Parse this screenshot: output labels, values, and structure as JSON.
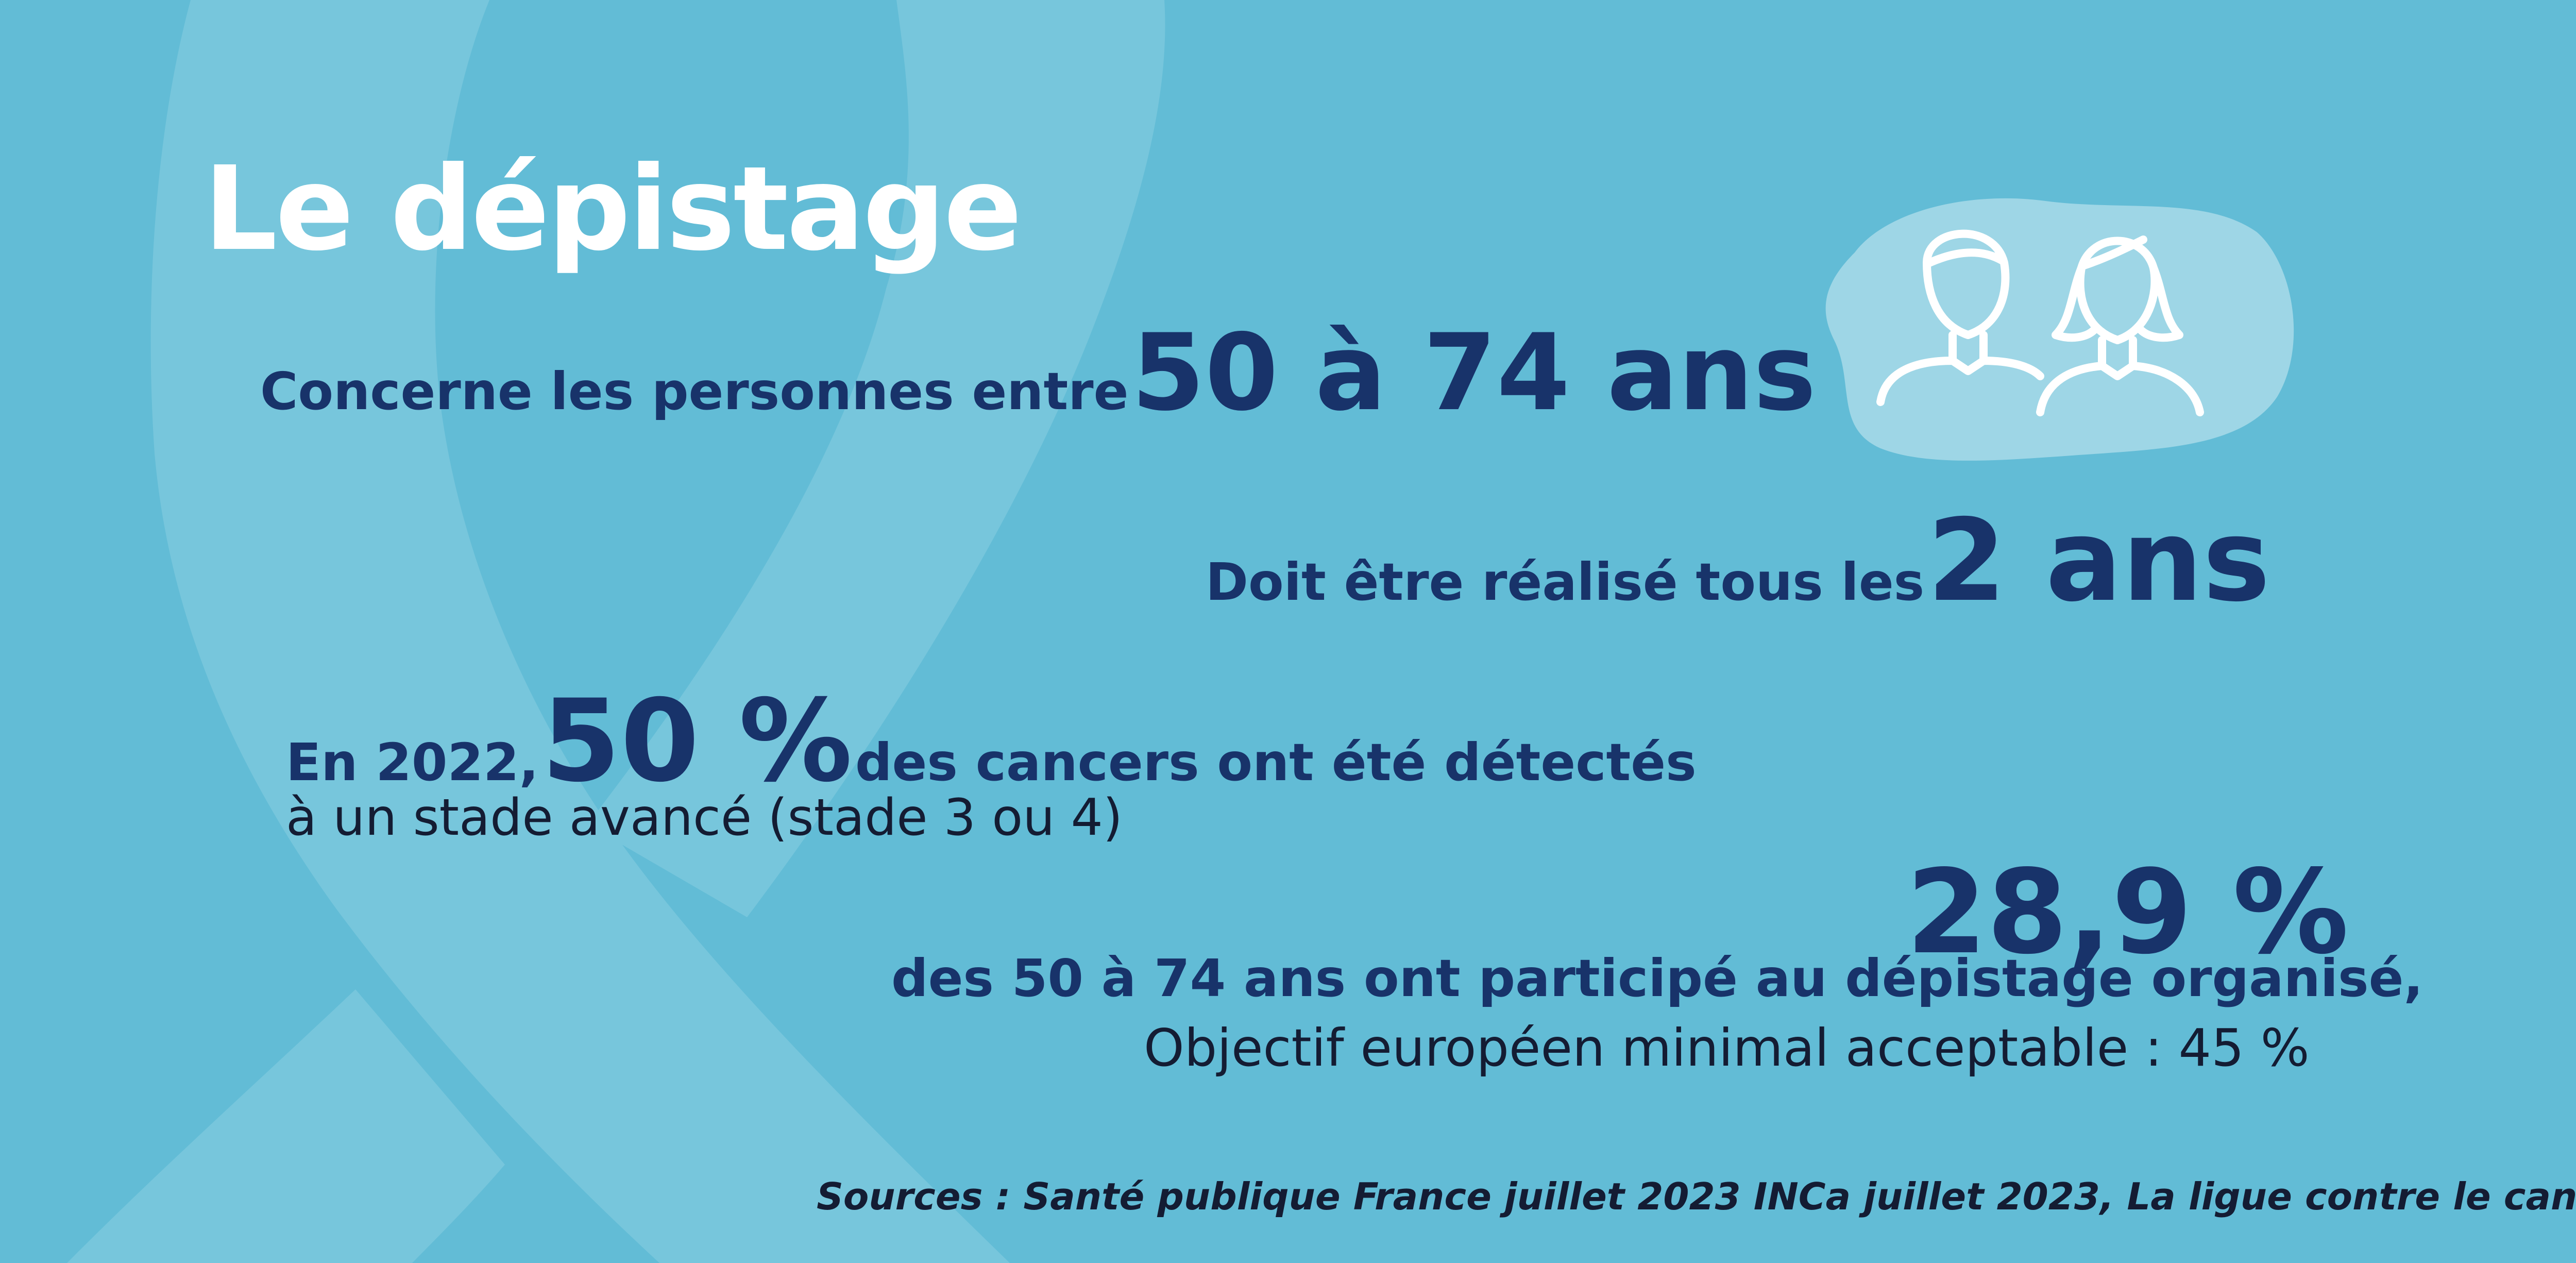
{
  "title": "Le dépistage",
  "line1": {
    "prefix": "Concerne les personnes entre",
    "highlight": "50 à 74 ans"
  },
  "line2": {
    "prefix": "Doit être réalisé tous les",
    "highlight": "2 ans"
  },
  "line3": {
    "prefix": "En 2022,",
    "highlight": "50 %",
    "suffix": "des cancers ont été détectés",
    "second": "à un stade avancé (stade 3 ou 4)"
  },
  "line4": {
    "highlight": "28,9 %",
    "text": "des 50 à 74 ans ont participé au dépistage organisé,",
    "objective": "Objectif européen minimal acceptable : 45 %"
  },
  "sources": "Sources : Santé publique France juillet 2023 INCa juillet 2023, La ligue contre le cancer",
  "colors": {
    "background": "#62BCD6",
    "ribbon": "#77C6DC",
    "accent": "#18336A",
    "title": "#FFFFFF"
  },
  "icons": [
    "awareness-ribbon",
    "people-icon"
  ]
}
